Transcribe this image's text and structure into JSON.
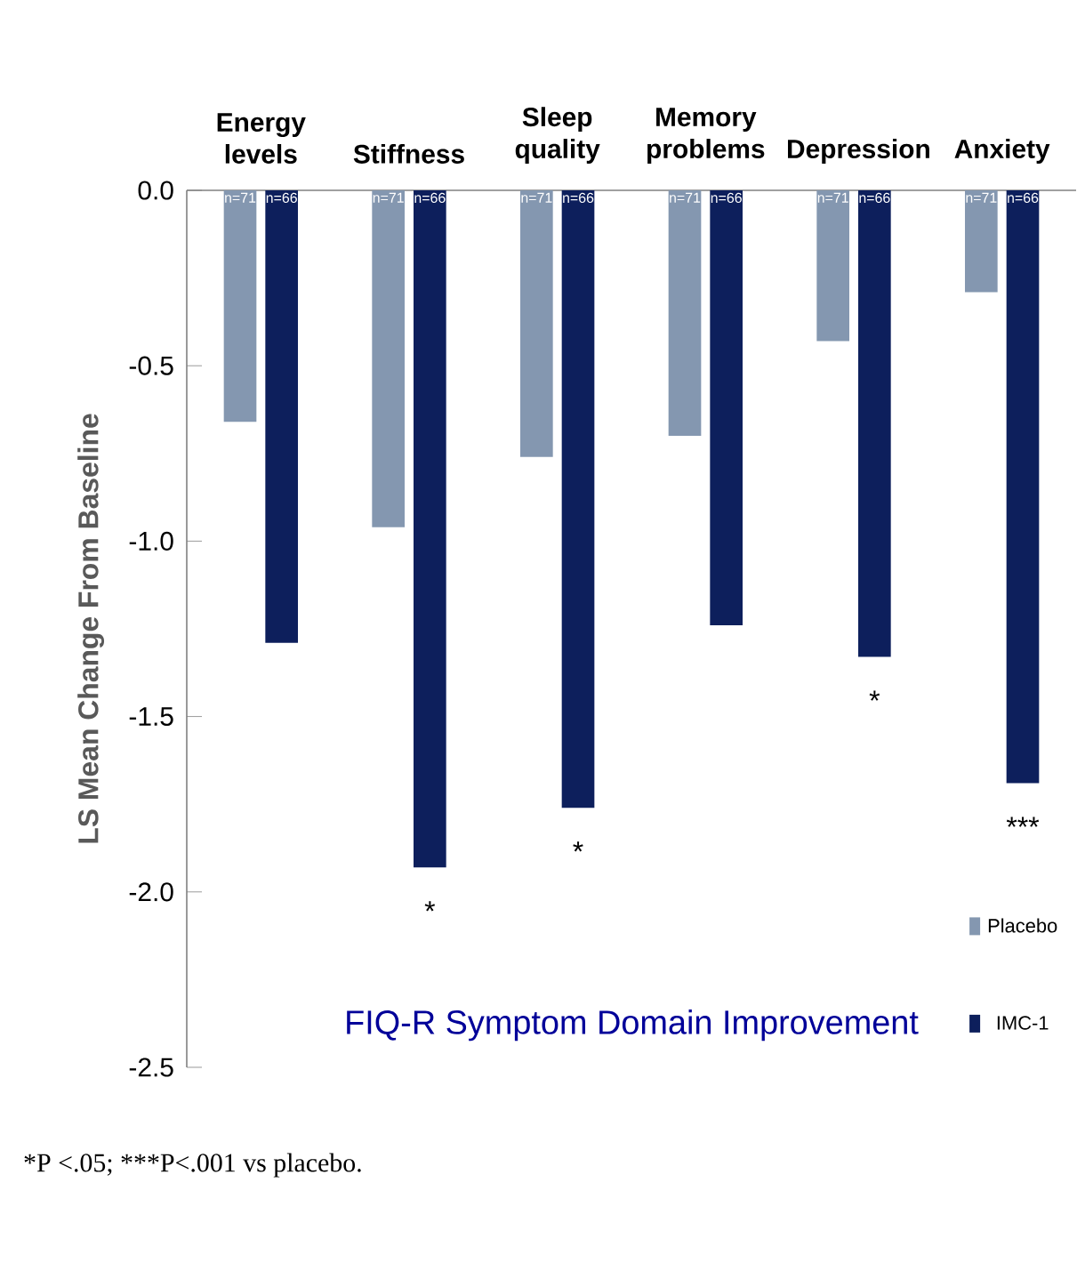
{
  "chart_data": {
    "type": "bar",
    "title": "FIQ-R Symptom Domain Improvement",
    "ylabel": "LS Mean Change From Baseline",
    "categories": [
      "Energy levels",
      "Stiffness",
      "Sleep quality",
      "Memory problems",
      "Depression",
      "Anxiety"
    ],
    "series": [
      {
        "name": "Placebo",
        "color": "#8497b0",
        "values": [
          -0.66,
          -0.96,
          -0.76,
          -0.7,
          -0.43,
          -0.29
        ]
      },
      {
        "name": "IMC-1",
        "color": "#0d1f5c",
        "values": [
          -1.29,
          -1.93,
          -1.76,
          -1.24,
          -1.33,
          -1.69
        ]
      }
    ],
    "ylim": [
      -2.5,
      0
    ],
    "yticks": [
      {
        "value": 0,
        "label": "0.0"
      },
      {
        "value": -0.5,
        "label": "-0.5"
      },
      {
        "value": -1,
        "label": "-1.0"
      },
      {
        "value": -1.5,
        "label": "-1.5"
      },
      {
        "value": -2,
        "label": "-2.0"
      },
      {
        "value": -2.5,
        "label": "-2.5"
      }
    ],
    "legend": "bottom right",
    "annotations": [
      "n=71",
      "n=66",
      "n=71",
      "n=66",
      "n=71",
      "n=66",
      "n=71",
      "n=66",
      "n=71",
      "n=66",
      "n=71",
      "n=66",
      {
        "text": "*",
        "x": "Stiffness",
        "y": -1.93
      },
      {
        "text": "*",
        "x": "Sleep quality",
        "y": -1.76
      },
      {
        "text": "*",
        "x": "Depression",
        "y": -1.33
      },
      {
        "text": "***",
        "x": "Anxiety",
        "y": -1.69
      },
      "*P <.05; ***P<.001 vs placebo."
    ]
  }
}
